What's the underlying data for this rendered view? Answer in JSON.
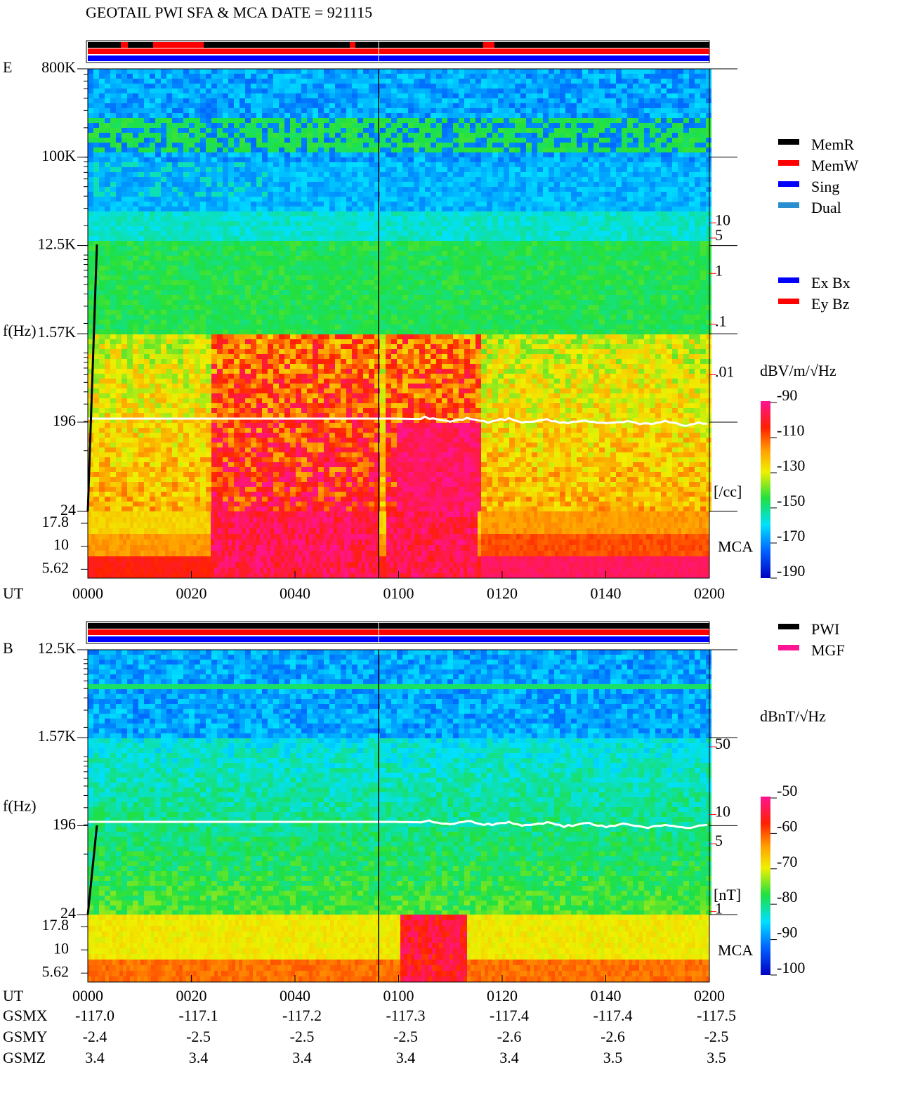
{
  "title": "GEOTAIL  PWI SFA & MCA   DATE = 921115",
  "chart_data": [
    {
      "type": "spectrogram",
      "panel_label": "E",
      "ylabel": "f(Hz)",
      "xlabel": "UT",
      "x": [
        "0000",
        "0020",
        "0040",
        "0100",
        "0120",
        "0140",
        "0200"
      ],
      "ylim": [
        24,
        800000
      ],
      "yscale": "log",
      "yticks": [
        {
          "value": 800000,
          "label": "800K"
        },
        {
          "value": 100000,
          "label": "100K"
        },
        {
          "value": 12500,
          "label": "12.5K"
        },
        {
          "value": 1570,
          "label": "1.57K"
        },
        196,
        24
      ],
      "mca_label": "MCA",
      "mca_ylim": [
        4.5,
        24
      ],
      "mca_yticks": [
        17.8,
        10,
        5.62
      ],
      "density_ylim": [
        2e-05,
        11000
      ],
      "density_yticks": [
        10,
        5,
        1,
        {
          "value": 0.1,
          "label": ".1"
        },
        {
          "value": 0.01,
          "label": ".01"
        }
      ],
      "density_unit": "[/cc]",
      "density_color": "#ff0000",
      "colorbar_title": "dBV/m/√Hz",
      "clim": [
        -190,
        -90
      ],
      "cticks": [
        -90,
        -110,
        -130,
        -150,
        -170,
        -190
      ],
      "legend": [
        {
          "name": "MemR",
          "color": "#000000"
        },
        {
          "name": "MemW",
          "color": "#ff0000"
        },
        {
          "name": "Sing",
          "color": "#0000ff"
        },
        {
          "name": "Dual",
          "color": "#2a8fd0"
        }
      ],
      "legend2": [
        {
          "name": "Ex Bx",
          "color": "#0000ff"
        },
        {
          "name": "Ey Bz",
          "color": "#ff0000"
        }
      ]
    },
    {
      "type": "spectrogram",
      "panel_label": "B",
      "ylabel": "f(Hz)",
      "xlabel": "UT",
      "x": [
        "0000",
        "0020",
        "0040",
        "0100",
        "0120",
        "0140",
        "0200"
      ],
      "ylim": [
        24,
        12500
      ],
      "yscale": "log",
      "yticks": [
        {
          "value": 12500,
          "label": "12.5K"
        },
        {
          "value": 1570,
          "label": "1.57K"
        },
        196,
        24
      ],
      "mca_label": "MCA",
      "mca_ylim": [
        4.5,
        24
      ],
      "mca_yticks": [
        17.8,
        10,
        5.62
      ],
      "density_ylim": [
        0.93,
        500
      ],
      "density_yticks": [
        50,
        10,
        5,
        1
      ],
      "density_unit": "[nT]",
      "density_color": "#ff0000",
      "colorbar_title": "dBnT/√Hz",
      "clim": [
        -100,
        -50
      ],
      "cticks": [
        -50,
        -60,
        -70,
        -80,
        -90,
        -100
      ],
      "legend": [
        {
          "name": "PWI",
          "color": "#000000"
        },
        {
          "name": "MGF",
          "color": "#ff1493"
        }
      ],
      "legend2": []
    }
  ],
  "ephemeris": [
    {
      "name": "GSMX",
      "values": [
        "-117.0",
        "-117.1",
        "-117.2",
        "-117.3",
        "-117.4",
        "-117.4",
        "-117.5"
      ]
    },
    {
      "name": "GSMY",
      "values": [
        "-2.4",
        "-2.5",
        "-2.5",
        "-2.5",
        "-2.6",
        "-2.6",
        "-2.5"
      ]
    },
    {
      "name": "GSMZ",
      "values": [
        "3.4",
        "3.4",
        "3.4",
        "3.4",
        "3.4",
        "3.5",
        "3.5"
      ]
    }
  ]
}
